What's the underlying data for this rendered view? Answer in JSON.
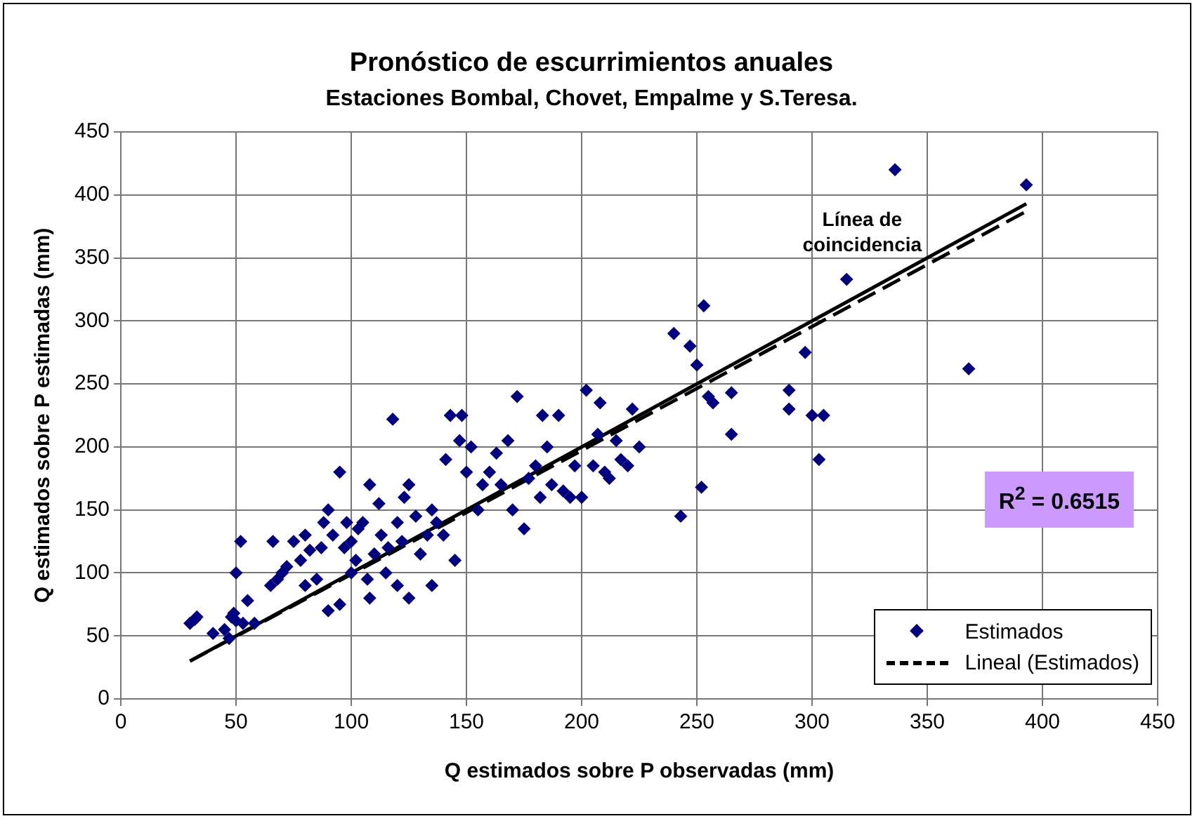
{
  "chart_data": {
    "type": "scatter",
    "title": "Pronóstico de escurrimientos anuales",
    "subtitle": "Estaciones Bombal, Chovet, Empalme y S.Teresa.",
    "xlabel": "Q estimados sobre P observadas (mm)",
    "ylabel": "Q estimados sobre P estimadas (mm)",
    "xlim": [
      0,
      450
    ],
    "xticks": [
      0,
      50,
      100,
      150,
      200,
      250,
      300,
      350,
      400,
      450
    ],
    "ylim": [
      0,
      450
    ],
    "yticks": [
      0,
      50,
      100,
      150,
      200,
      250,
      300,
      350,
      400,
      450
    ],
    "grid": true,
    "legend": "bottom right",
    "marker": "diamond",
    "series": [
      {
        "name": "Estimados",
        "color": "#000080",
        "x": [
          30,
          32,
          33,
          40,
          45,
          47,
          48,
          49,
          50,
          50,
          52,
          53,
          55,
          58,
          65,
          66,
          68,
          70,
          72,
          75,
          78,
          80,
          80,
          82,
          85,
          87,
          88,
          90,
          90,
          92,
          95,
          95,
          97,
          98,
          100,
          100,
          102,
          103,
          105,
          107,
          108,
          108,
          110,
          112,
          113,
          115,
          116,
          118,
          120,
          120,
          122,
          123,
          125,
          125,
          128,
          130,
          133,
          135,
          135,
          137,
          140,
          141,
          143,
          145,
          147,
          148,
          150,
          152,
          155,
          157,
          160,
          163,
          165,
          168,
          170,
          172,
          175,
          177,
          180,
          182,
          183,
          185,
          187,
          190,
          192,
          195,
          197,
          200,
          202,
          205,
          207,
          208,
          210,
          212,
          215,
          217,
          220,
          222,
          225,
          240,
          243,
          247,
          250,
          252,
          253,
          255,
          257,
          265,
          265,
          290,
          290,
          297,
          300,
          303,
          305,
          315,
          336,
          368,
          393
        ],
        "values": [
          60,
          63,
          65,
          52,
          55,
          48,
          65,
          68,
          100,
          62,
          125,
          60,
          78,
          60,
          90,
          125,
          95,
          100,
          105,
          125,
          110,
          90,
          130,
          118,
          95,
          120,
          140,
          150,
          70,
          130,
          75,
          180,
          120,
          140,
          100,
          125,
          110,
          135,
          140,
          95,
          170,
          80,
          115,
          155,
          130,
          100,
          120,
          222,
          90,
          140,
          125,
          160,
          80,
          170,
          145,
          115,
          130,
          90,
          150,
          140,
          130,
          190,
          225,
          110,
          205,
          225,
          180,
          200,
          150,
          170,
          180,
          195,
          170,
          205,
          150,
          240,
          135,
          175,
          185,
          160,
          225,
          200,
          170,
          225,
          165,
          160,
          185,
          160,
          245,
          185,
          210,
          235,
          180,
          175,
          205,
          190,
          185,
          230,
          200,
          290,
          145,
          280,
          265,
          168,
          312,
          240,
          235,
          210,
          243,
          245,
          230,
          275,
          225,
          190,
          225,
          333,
          420,
          262,
          408
        ]
      },
      {
        "name": "Lineal (Estimados)",
        "type": "line",
        "line_style": "dashed",
        "marker": "none",
        "color": "#000000",
        "x": [
          30,
          393
        ],
        "values": [
          30,
          387
        ]
      },
      {
        "type": "line",
        "line_style": "solid",
        "marker": "none",
        "color": "#000000",
        "x": [
          30,
          393
        ],
        "values": [
          30,
          393
        ]
      }
    ],
    "annotations": [
      "Línea de coincidencia",
      "R$^{2}$ = 0.6515"
    ]
  }
}
